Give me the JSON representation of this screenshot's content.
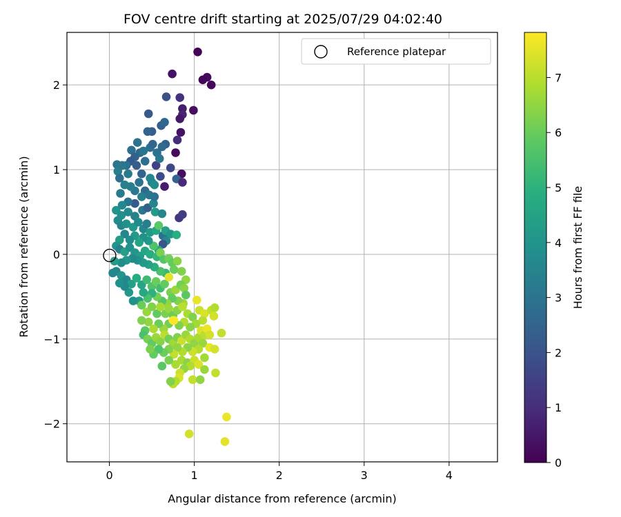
{
  "chart_data": {
    "type": "scatter",
    "title": "FOV centre drift starting at 2025/07/29 04:02:40",
    "xlabel": "Angular distance from reference (arcmin)",
    "ylabel": "Rotation from reference (arcmin)",
    "xlim": [
      -0.5,
      4.57
    ],
    "ylim": [
      -2.45,
      2.62
    ],
    "xticks": [
      "0",
      "1",
      "2",
      "3",
      "4"
    ],
    "yticks": [
      "−2",
      "−1",
      "0",
      "1",
      "2"
    ],
    "grid": true,
    "legend": {
      "position": "top-right",
      "entries": [
        "Reference platepar"
      ]
    },
    "reference_point": {
      "x": 0,
      "y": 0
    },
    "colorbar": {
      "label": "Hours from first FF file",
      "range": [
        0,
        7.82
      ],
      "ticks": [
        "0",
        "1",
        "2",
        "3",
        "4",
        "5",
        "6",
        "7"
      ],
      "colormap": "viridis"
    },
    "points": [
      [
        1.04,
        2.39,
        0.05
      ],
      [
        0.74,
        2.13,
        0.4
      ],
      [
        1.15,
        2.09,
        0.2
      ],
      [
        1.1,
        2.06,
        0.1
      ],
      [
        1.2,
        2.0,
        0.15
      ],
      [
        0.83,
        1.85,
        1.1
      ],
      [
        0.67,
        1.86,
        1.9
      ],
      [
        0.86,
        1.72,
        0.6
      ],
      [
        0.99,
        1.7,
        0.3
      ],
      [
        0.86,
        1.65,
        0.8
      ],
      [
        0.83,
        1.6,
        0.5
      ],
      [
        0.46,
        1.66,
        2.2
      ],
      [
        0.61,
        1.52,
        2.4
      ],
      [
        0.65,
        1.56,
        2.6
      ],
      [
        0.84,
        1.44,
        0.4
      ],
      [
        0.5,
        1.45,
        2.3
      ],
      [
        0.45,
        1.45,
        2.5
      ],
      [
        0.8,
        1.35,
        1.0
      ],
      [
        0.48,
        1.26,
        2.8
      ],
      [
        0.51,
        1.3,
        2.6
      ],
      [
        0.56,
        1.2,
        2.9
      ],
      [
        0.66,
        1.3,
        2.4
      ],
      [
        0.62,
        1.27,
        2.7
      ],
      [
        0.33,
        1.32,
        2.9
      ],
      [
        0.36,
        1.2,
        2.6
      ],
      [
        0.4,
        1.22,
        3.0
      ],
      [
        0.26,
        1.23,
        2.8
      ],
      [
        0.3,
        1.15,
        2.4
      ],
      [
        0.25,
        1.1,
        2.2
      ],
      [
        0.2,
        1.05,
        2.9
      ],
      [
        0.09,
        1.06,
        3.0
      ],
      [
        0.1,
        0.98,
        3.3
      ],
      [
        0.15,
        1.05,
        3.1
      ],
      [
        0.22,
        0.95,
        3.2
      ],
      [
        0.32,
        1.05,
        2.3
      ],
      [
        0.38,
        0.95,
        2.5
      ],
      [
        0.42,
        1.1,
        2.8
      ],
      [
        0.55,
        1.05,
        1.5
      ],
      [
        0.59,
        1.13,
        3.1
      ],
      [
        0.78,
        1.2,
        0.2
      ],
      [
        0.72,
        1.02,
        1.7
      ],
      [
        0.85,
        0.95,
        0.3
      ],
      [
        0.79,
        0.89,
        2.5
      ],
      [
        0.86,
        0.85,
        0.9
      ],
      [
        0.65,
        0.8,
        0.6
      ],
      [
        0.6,
        0.92,
        1.8
      ],
      [
        0.5,
        0.85,
        3.3
      ],
      [
        0.48,
        0.9,
        3.6
      ],
      [
        0.35,
        0.85,
        2.9
      ],
      [
        0.3,
        0.75,
        3.1
      ],
      [
        0.25,
        0.8,
        3.3
      ],
      [
        0.18,
        0.82,
        3.4
      ],
      [
        0.12,
        0.9,
        2.8
      ],
      [
        0.13,
        0.72,
        3.2
      ],
      [
        0.42,
        0.75,
        2.7
      ],
      [
        0.53,
        0.82,
        3.8
      ],
      [
        0.47,
        0.7,
        3.0
      ],
      [
        0.38,
        0.68,
        3.4
      ],
      [
        0.3,
        0.6,
        2.2
      ],
      [
        0.22,
        0.62,
        3.0
      ],
      [
        0.15,
        0.58,
        3.6
      ],
      [
        0.08,
        0.52,
        4.0
      ],
      [
        0.14,
        0.46,
        3.9
      ],
      [
        0.22,
        0.5,
        3.7
      ],
      [
        0.3,
        0.45,
        3.4
      ],
      [
        0.39,
        0.52,
        3.1
      ],
      [
        0.45,
        0.55,
        2.4
      ],
      [
        0.52,
        0.6,
        3.5
      ],
      [
        0.53,
        0.68,
        2.9
      ],
      [
        0.54,
        0.5,
        4.2
      ],
      [
        0.62,
        0.48,
        3.5
      ],
      [
        0.82,
        0.43,
        1.2
      ],
      [
        0.86,
        0.47,
        1.4
      ],
      [
        0.1,
        0.4,
        3.8
      ],
      [
        0.14,
        0.34,
        3.5
      ],
      [
        0.2,
        0.36,
        3.9
      ],
      [
        0.28,
        0.32,
        4.1
      ],
      [
        0.34,
        0.38,
        3.7
      ],
      [
        0.4,
        0.3,
        3.6
      ],
      [
        0.44,
        0.36,
        3.3
      ],
      [
        0.48,
        0.26,
        4.2
      ],
      [
        0.55,
        0.28,
        4.6
      ],
      [
        0.58,
        0.34,
        5.8
      ],
      [
        0.63,
        0.22,
        2.8
      ],
      [
        0.66,
        0.28,
        4.4
      ],
      [
        0.72,
        0.24,
        4.0
      ],
      [
        0.79,
        0.23,
        4.9
      ],
      [
        0.67,
        0.16,
        3.6
      ],
      [
        0.63,
        0.12,
        2.0
      ],
      [
        0.58,
        0.05,
        4.7
      ],
      [
        0.52,
        0.1,
        5.6
      ],
      [
        0.46,
        0.16,
        4.1
      ],
      [
        0.4,
        0.2,
        3.9
      ],
      [
        0.35,
        0.14,
        4.5
      ],
      [
        0.3,
        0.22,
        4.2
      ],
      [
        0.24,
        0.17,
        3.8
      ],
      [
        0.18,
        0.24,
        3.6
      ],
      [
        0.12,
        0.17,
        4.3
      ],
      [
        0.08,
        0.1,
        4.0
      ],
      [
        0.12,
        0.06,
        3.4
      ],
      [
        0.18,
        0.03,
        4.4
      ],
      [
        0.24,
        0.08,
        3.9
      ],
      [
        0.3,
        0.02,
        4.1
      ],
      [
        0.36,
        -0.02,
        4.3
      ],
      [
        0.42,
        0.04,
        4.6
      ],
      [
        0.48,
        0.0,
        4.8
      ],
      [
        0.56,
        -0.03,
        5.1
      ],
      [
        0.6,
        0.02,
        6.2
      ],
      [
        0.64,
        -0.06,
        5.7
      ],
      [
        0.7,
        -0.05,
        6.1
      ],
      [
        0.74,
        -0.1,
        5.9
      ],
      [
        0.8,
        -0.08,
        6.4
      ],
      [
        0.76,
        -0.18,
        6.0
      ],
      [
        0.85,
        -0.2,
        6.3
      ],
      [
        0.9,
        -0.3,
        6.5
      ],
      [
        0.66,
        -0.22,
        5.2
      ],
      [
        0.6,
        -0.2,
        5.5
      ],
      [
        0.53,
        -0.15,
        4.9
      ],
      [
        0.46,
        -0.12,
        4.4
      ],
      [
        0.4,
        -0.1,
        4.2
      ],
      [
        0.33,
        -0.07,
        3.9
      ],
      [
        0.27,
        -0.05,
        3.7
      ],
      [
        0.2,
        -0.07,
        4.1
      ],
      [
        0.14,
        -0.1,
        3.8
      ],
      [
        0.06,
        -0.08,
        4.3
      ],
      [
        0.08,
        -0.2,
        3.5
      ],
      [
        0.14,
        -0.25,
        4.0
      ],
      [
        0.2,
        -0.3,
        3.6
      ],
      [
        0.26,
        -0.35,
        4.4
      ],
      [
        0.32,
        -0.28,
        4.8
      ],
      [
        0.38,
        -0.36,
        4.6
      ],
      [
        0.44,
        -0.3,
        5.3
      ],
      [
        0.5,
        -0.38,
        5.6
      ],
      [
        0.55,
        -0.32,
        6.0
      ],
      [
        0.6,
        -0.4,
        5.4
      ],
      [
        0.65,
        -0.35,
        5.9
      ],
      [
        0.7,
        -0.27,
        7.5
      ],
      [
        0.72,
        -0.45,
        6.2
      ],
      [
        0.78,
        -0.42,
        6.6
      ],
      [
        0.84,
        -0.36,
        6.1
      ],
      [
        0.88,
        -0.4,
        6.4
      ],
      [
        0.9,
        -0.48,
        5.8
      ],
      [
        0.87,
        -0.58,
        6.7
      ],
      [
        0.81,
        -0.55,
        6.3
      ],
      [
        0.74,
        -0.52,
        5.9
      ],
      [
        0.68,
        -0.58,
        6.5
      ],
      [
        0.62,
        -0.55,
        5.7
      ],
      [
        0.56,
        -0.5,
        6.1
      ],
      [
        0.5,
        -0.46,
        5.0
      ],
      [
        0.45,
        -0.52,
        5.5
      ],
      [
        0.4,
        -0.45,
        4.7
      ],
      [
        0.35,
        -0.55,
        4.3
      ],
      [
        0.28,
        -0.55,
        3.9
      ],
      [
        0.23,
        -0.45,
        4.1
      ],
      [
        0.18,
        -0.38,
        3.7
      ],
      [
        0.12,
        -0.34,
        3.9
      ],
      [
        0.04,
        -0.22,
        3.6
      ],
      [
        0.38,
        -0.6,
        6.0
      ],
      [
        0.44,
        -0.68,
        6.6
      ],
      [
        0.5,
        -0.62,
        6.3
      ],
      [
        0.56,
        -0.7,
        5.9
      ],
      [
        0.6,
        -0.62,
        6.8
      ],
      [
        0.66,
        -0.7,
        6.2
      ],
      [
        0.7,
        -0.64,
        6.6
      ],
      [
        0.75,
        -0.72,
        6.0
      ],
      [
        0.8,
        -0.66,
        6.4
      ],
      [
        0.86,
        -0.62,
        7.0
      ],
      [
        0.92,
        -0.7,
        6.8
      ],
      [
        0.98,
        -0.74,
        6.3
      ],
      [
        1.03,
        -0.54,
        7.6
      ],
      [
        1.06,
        -0.66,
        7.2
      ],
      [
        1.12,
        -0.7,
        7.4
      ],
      [
        1.2,
        -0.66,
        7.1
      ],
      [
        1.24,
        -0.63,
        6.9
      ],
      [
        1.23,
        -0.73,
        7.3
      ],
      [
        1.1,
        -0.78,
        7.0
      ],
      [
        1.02,
        -0.82,
        6.7
      ],
      [
        0.95,
        -0.86,
        6.4
      ],
      [
        0.88,
        -0.8,
        6.9
      ],
      [
        0.82,
        -0.84,
        6.3
      ],
      [
        0.76,
        -0.78,
        7.8
      ],
      [
        0.7,
        -0.82,
        6.1
      ],
      [
        0.64,
        -0.88,
        6.6
      ],
      [
        0.58,
        -0.82,
        6.0
      ],
      [
        0.52,
        -0.88,
        6.8
      ],
      [
        0.46,
        -0.8,
        6.5
      ],
      [
        0.42,
        -0.9,
        5.8
      ],
      [
        0.38,
        -0.78,
        6.3
      ],
      [
        0.4,
        -0.95,
        5.5
      ],
      [
        0.45,
        -1.0,
        6.2
      ],
      [
        0.5,
        -1.05,
        5.9
      ],
      [
        0.55,
        -0.98,
        6.6
      ],
      [
        0.6,
        -1.03,
        6.4
      ],
      [
        0.65,
        -0.95,
        7.0
      ],
      [
        0.7,
        -1.0,
        6.1
      ],
      [
        0.75,
        -1.05,
        6.7
      ],
      [
        0.8,
        -0.98,
        6.3
      ],
      [
        0.85,
        -1.02,
        7.2
      ],
      [
        0.9,
        -0.95,
        6.6
      ],
      [
        0.95,
        -1.0,
        6.9
      ],
      [
        1.0,
        -1.05,
        6.5
      ],
      [
        1.05,
        -0.98,
        6.8
      ],
      [
        1.08,
        -0.9,
        7.4
      ],
      [
        1.12,
        -0.95,
        7.0
      ],
      [
        1.15,
        -0.88,
        7.6
      ],
      [
        1.18,
        -0.95,
        7.3
      ],
      [
        1.32,
        -0.93,
        7.1
      ],
      [
        1.1,
        -1.05,
        6.6
      ],
      [
        1.05,
        -1.12,
        6.9
      ],
      [
        0.98,
        -1.15,
        7.2
      ],
      [
        0.92,
        -1.1,
        6.4
      ],
      [
        0.86,
        -1.15,
        6.9
      ],
      [
        0.8,
        -1.1,
        6.5
      ],
      [
        0.76,
        -1.18,
        7.1
      ],
      [
        0.7,
        -1.12,
        6.3
      ],
      [
        0.64,
        -1.16,
        6.0
      ],
      [
        0.58,
        -1.12,
        5.6
      ],
      [
        0.52,
        -1.18,
        5.9
      ],
      [
        0.48,
        -1.12,
        6.2
      ],
      [
        0.75,
        -0.78,
        7.8
      ],
      [
        0.85,
        -1.25,
        6.8
      ],
      [
        0.92,
        -1.28,
        6.4
      ],
      [
        1.0,
        -1.25,
        7.2
      ],
      [
        1.05,
        -1.3,
        7.4
      ],
      [
        1.12,
        -1.22,
        6.7
      ],
      [
        1.18,
        -1.1,
        7.6
      ],
      [
        1.24,
        -1.12,
        7.3
      ],
      [
        1.12,
        -1.36,
        6.6
      ],
      [
        1.25,
        -1.4,
        7.1
      ],
      [
        0.95,
        -1.32,
        6.9
      ],
      [
        0.88,
        -1.35,
        6.5
      ],
      [
        0.78,
        -1.3,
        6.8
      ],
      [
        0.7,
        -1.25,
        6.2
      ],
      [
        0.62,
        -1.32,
        5.8
      ],
      [
        0.83,
        -1.4,
        7.2
      ],
      [
        0.82,
        -1.46,
        7.4
      ],
      [
        0.78,
        -1.5,
        6.9
      ],
      [
        0.75,
        -1.53,
        7.0
      ],
      [
        0.72,
        -1.5,
        6.3
      ],
      [
        0.98,
        -1.48,
        7.1
      ],
      [
        1.07,
        -1.48,
        6.5
      ],
      [
        1.38,
        -1.92,
        7.6
      ],
      [
        0.94,
        -2.12,
        7.3
      ],
      [
        1.36,
        -2.21,
        7.5
      ]
    ]
  }
}
